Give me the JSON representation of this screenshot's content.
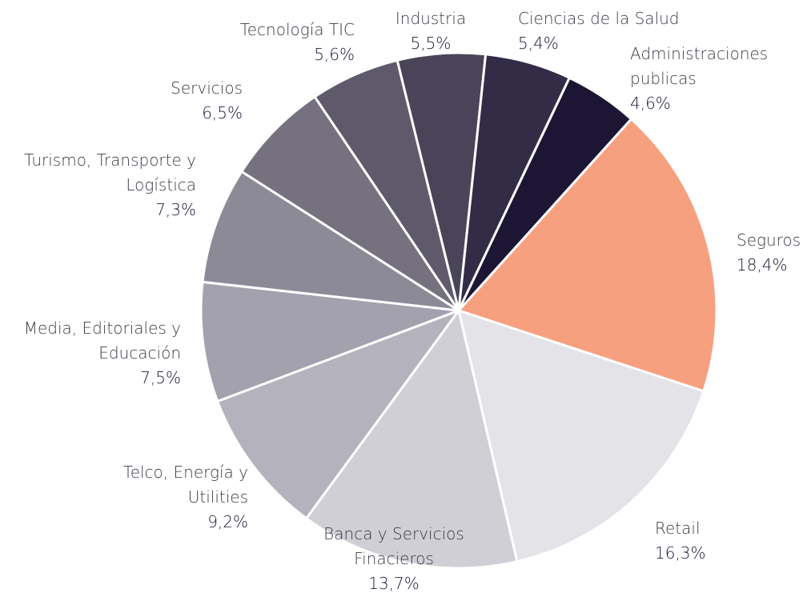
{
  "chart_data": {
    "type": "pie",
    "categories": [
      "Seguros",
      "Retail",
      "Banca y Servicios Finacieros",
      "Telco, Energía y Utilities",
      "Media, Editoriales y Educación",
      "Turismo, Transporte y Logística",
      "Servicios",
      "Tecnología TIC",
      "Industria",
      "Ciencias de la Salud",
      "Administraciones publicas"
    ],
    "values": [
      18.4,
      16.3,
      13.7,
      9.2,
      7.5,
      7.3,
      6.5,
      5.6,
      5.5,
      5.4,
      4.6
    ],
    "value_labels": [
      "18,4%",
      "16,3%",
      "13,7%",
      "9,2%",
      "7,5%",
      "7,3%",
      "6,5%",
      "5,6%",
      "5,5%",
      "5,4%",
      "4,6%"
    ],
    "colors": [
      "#f7a07f",
      "#e4e3e8",
      "#d0cfd6",
      "#b4b2bd",
      "#a3a1ad",
      "#8d8a98",
      "#75717f",
      "#5f5a6b",
      "#4a4459",
      "#332c47",
      "#1c1634"
    ]
  }
}
